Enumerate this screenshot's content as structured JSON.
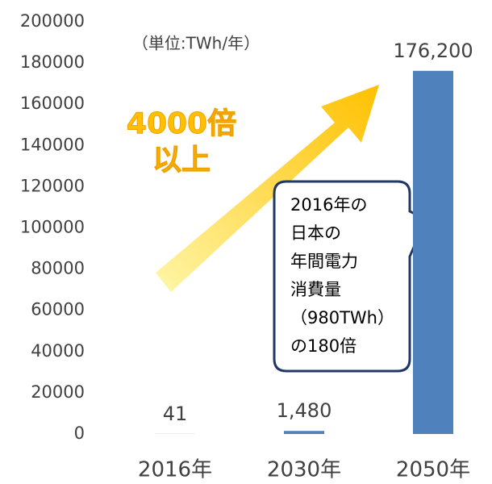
{
  "chart_data": {
    "type": "bar",
    "categories": [
      "2016年",
      "2030年",
      "2050年"
    ],
    "values": [
      41,
      1480,
      176200
    ],
    "value_labels": [
      "41",
      "1,480",
      "176,200"
    ],
    "color": "#4f81bd",
    "ylim": [
      0,
      200000
    ],
    "yticks": [
      0,
      20000,
      40000,
      60000,
      80000,
      100000,
      120000,
      140000,
      160000,
      180000,
      200000
    ],
    "unit_note": "（単位:TWh/年）",
    "arrow_text": [
      "4000倍",
      "以上"
    ],
    "callout_lines": [
      "2016年の",
      "日本の",
      "年間電力",
      "消費量",
      "（980TWh）",
      "の180倍"
    ],
    "grid": false
  }
}
